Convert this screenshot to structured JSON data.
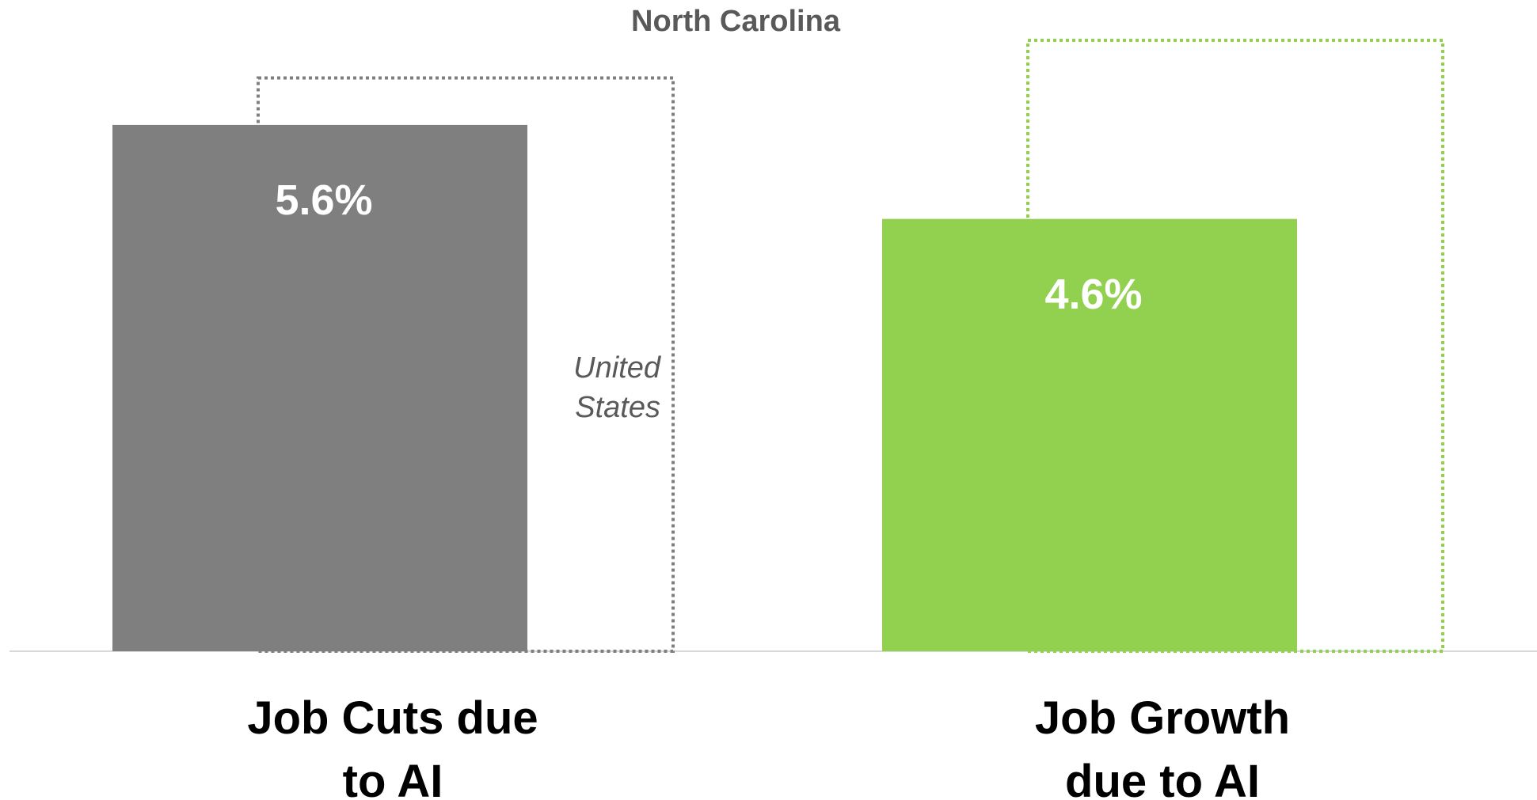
{
  "chart_data": {
    "type": "bar",
    "categories": [
      "Job Cuts due to AI",
      "Job Growth due to AI"
    ],
    "series": [
      {
        "name": "North Carolina",
        "values": [
          5.6,
          4.6
        ],
        "value_labels": [
          "5.6%",
          "4.6%"
        ],
        "colors": [
          "#7f7f7f",
          "#92d050"
        ],
        "style": "solid"
      },
      {
        "name": "United States",
        "values": [
          6.1,
          6.5
        ],
        "colors": [
          "#7f7f7f",
          "#92d050"
        ],
        "style": "dotted"
      }
    ],
    "ylim": [
      0,
      6.5
    ]
  }
}
